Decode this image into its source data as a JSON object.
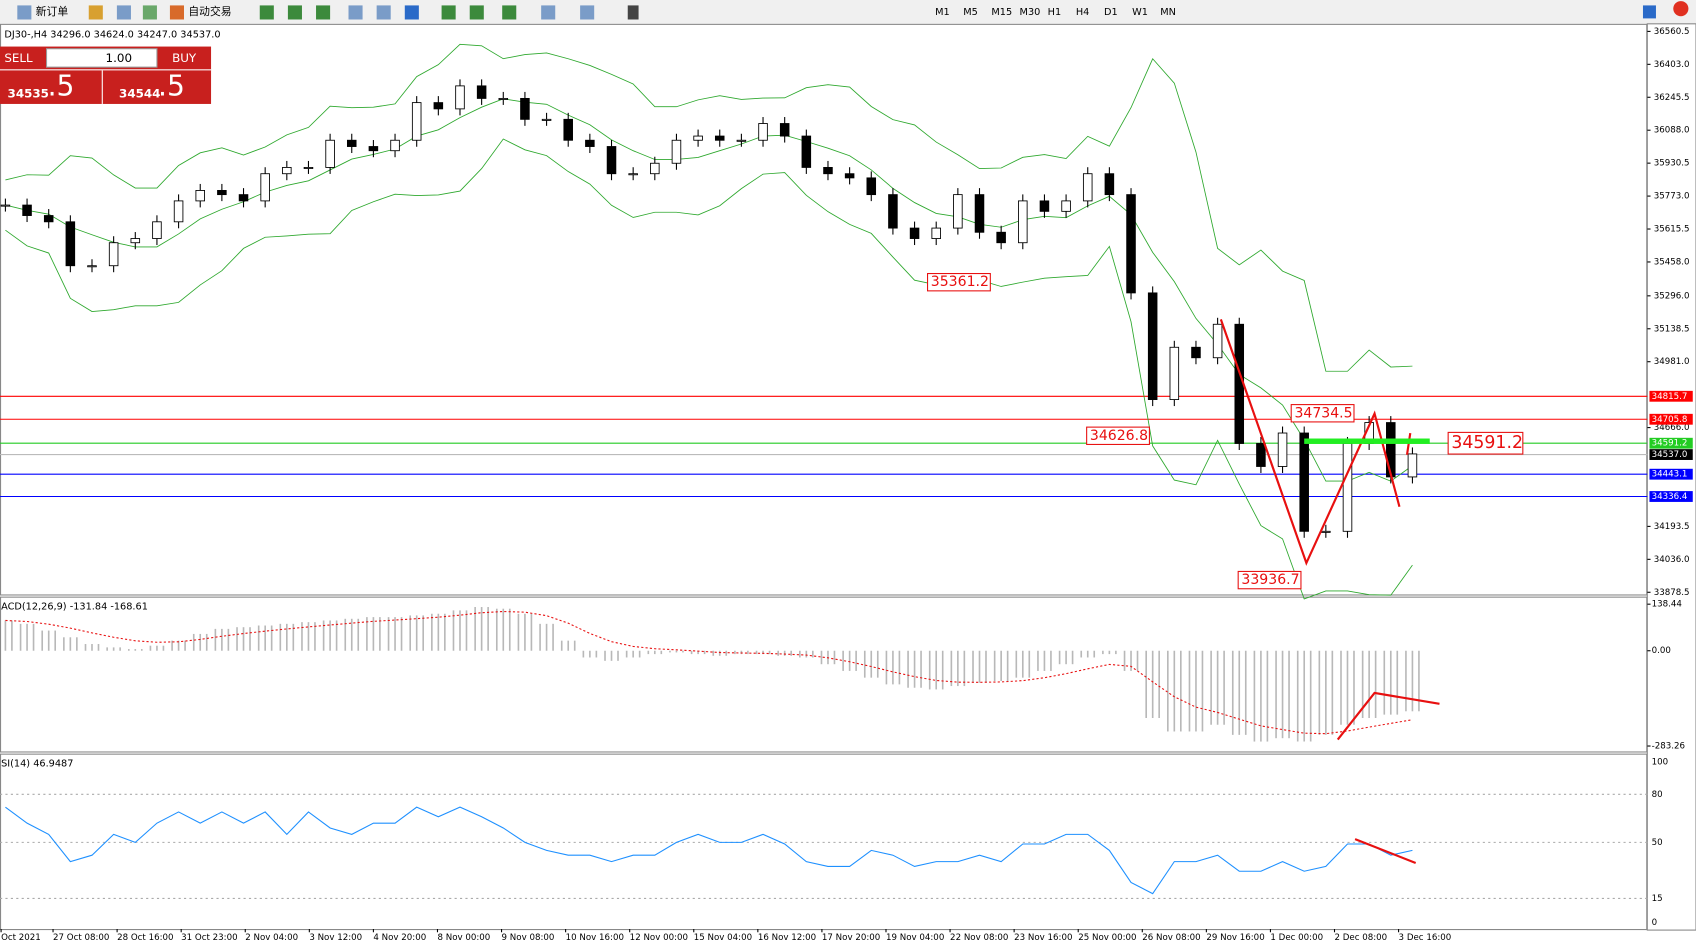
{
  "toolbar": {
    "buttons": [
      "新订单",
      "自动交易"
    ],
    "timeframes": [
      "M1",
      "M5",
      "M15",
      "M30",
      "H1",
      "H4",
      "D1",
      "W1",
      "MN"
    ]
  },
  "trade_panel": {
    "sell_label": "SELL",
    "lot": "1.00",
    "buy_label": "BUY",
    "sell_price": "34535",
    "sell_fraction": ".5",
    "buy_price": "34544",
    "buy_fraction": ".5"
  },
  "main_chart": {
    "header": "DJ30-,H4  34296.0 34624.0 34247.0 34537.0",
    "ylim": [
      33878.5,
      36560.5
    ],
    "yticks": [
      36560.5,
      {
        "value": 36403,
        "label": "36403.0"
      },
      36245.5,
      {
        "value": 36088,
        "label": "36088.0"
      },
      35930.5,
      {
        "value": 35773,
        "label": "35773.0"
      },
      35615.5,
      {
        "value": 35458,
        "label": "35458.0"
      },
      {
        "value": 35296,
        "label": "35296.0"
      },
      35138.5,
      {
        "value": 34981,
        "label": "34981.0"
      },
      {
        "value": 34666,
        "label": "34666.0"
      },
      34193.5,
      {
        "value": 34036,
        "label": "34036.0"
      },
      33878.5
    ],
    "levels": [
      {
        "value": 34815.7,
        "color": "#ff0000"
      },
      {
        "value": 34705.8,
        "color": "#ff0000"
      },
      {
        "value": 34591.2,
        "color": "#22cc22"
      },
      {
        "value": 34443.1,
        "color": "#0000ff"
      },
      {
        "value": 34336.4,
        "color": "#0000ff"
      }
    ],
    "last_price": {
      "value": 34537,
      "label": "34537.0"
    },
    "closes": [
      35730,
      35680,
      35650,
      35440,
      35440,
      35550,
      35570,
      35650,
      35750,
      35800,
      35780,
      35750,
      35880,
      35910,
      35910,
      36040,
      36010,
      35990,
      36040,
      36220,
      36190,
      36300,
      36240,
      36240,
      36140,
      36140,
      36040,
      36010,
      35880,
      35880,
      35930,
      36040,
      36060,
      36040,
      36040,
      36120,
      36060,
      35910,
      35880,
      35860,
      35780,
      35620,
      35570,
      35620,
      35780,
      35600,
      35550,
      35750,
      35700,
      35750,
      35880,
      35780,
      35310,
      34800,
      35050,
      35000,
      35160,
      34590,
      34480,
      34640,
      34170,
      34170,
      34590,
      34690,
      34430,
      34540
    ],
    "annotations": [
      35361.2,
      34626.8,
      33936.7,
      34734.5
    ],
    "big_label": 34591.2
  },
  "macd": {
    "header": "ACD(12,26,9) -131.84 -168.61",
    "ylim": [
      -283.26,
      138.44
    ],
    "yticks": [
      138.44,
      {
        "value": 0,
        "label": "0.00"
      },
      -283.26
    ],
    "histogram": [
      90,
      80,
      60,
      40,
      20,
      10,
      5,
      15,
      30,
      50,
      65,
      70,
      75,
      80,
      85,
      90,
      95,
      100,
      100,
      105,
      110,
      120,
      130,
      125,
      110,
      80,
      30,
      -20,
      -30,
      -20,
      -10,
      -5,
      -10,
      -15,
      -10,
      -10,
      -15,
      -20,
      -40,
      -60,
      -80,
      -100,
      -110,
      -115,
      -105,
      -95,
      -90,
      -80,
      -60,
      -40,
      -20,
      -10,
      -60,
      -200,
      -240,
      -240,
      -220,
      -250,
      -270,
      -260,
      -270,
      -250,
      -220,
      -200,
      -190,
      -180
    ]
  },
  "rsi": {
    "header": "SI(14) 46.9487",
    "ylim": [
      0,
      100
    ],
    "yticks": [
      100,
      80,
      50,
      15,
      0
    ],
    "values": [
      72,
      62,
      55,
      38,
      42,
      55,
      50,
      62,
      69,
      62,
      69,
      62,
      69,
      55,
      69,
      59,
      55,
      62,
      62,
      72,
      66,
      72,
      66,
      59,
      50,
      45,
      42,
      42,
      38,
      42,
      42,
      50,
      55,
      50,
      50,
      55,
      49,
      38,
      35,
      35,
      45,
      42,
      35,
      38,
      38,
      42,
      38,
      49,
      49,
      55,
      55,
      45,
      25,
      18,
      38,
      38,
      42,
      32,
      32,
      38,
      32,
      35,
      49,
      49,
      42,
      45
    ]
  },
  "time_axis": [
    "Oct 2021",
    "27 Oct 08:00",
    "28 Oct 16:00",
    "31 Oct 23:00",
    "2 Nov 04:00",
    "3 Nov 12:00",
    "4 Nov 20:00",
    "8 Nov 00:00",
    "9 Nov 08:00",
    "10 Nov 16:00",
    "12 Nov 00:00",
    "15 Nov 04:00",
    "16 Nov 12:00",
    "17 Nov 20:00",
    "19 Nov 04:00",
    "22 Nov 08:00",
    "23 Nov 16:00",
    "25 Nov 00:00",
    "26 Nov 08:00",
    "29 Nov 16:00",
    "1 Dec 00:00",
    "2 Dec 08:00",
    "3 Dec 16:00"
  ]
}
